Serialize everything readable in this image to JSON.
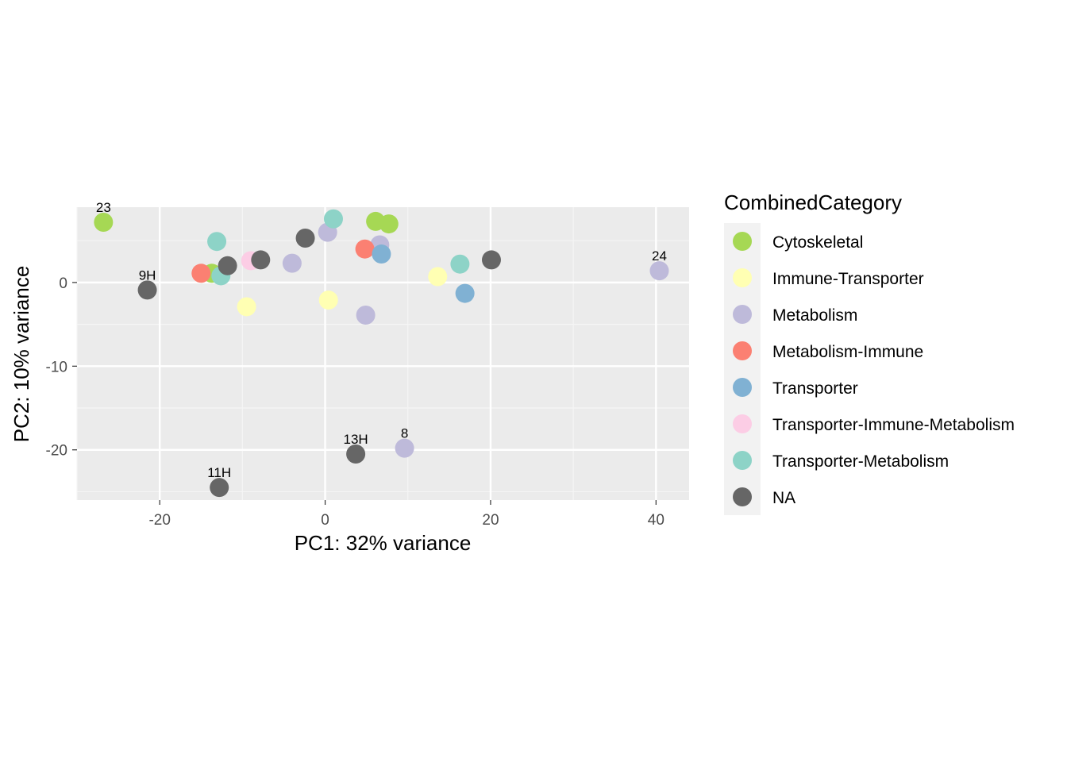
{
  "chart_data": {
    "type": "scatter",
    "xlabel": "PC1: 32% variance",
    "ylabel": "PC2: 10% variance",
    "xlim": [
      -30,
      44
    ],
    "ylim": [
      -26,
      9
    ],
    "x_ticks": [
      -20,
      0,
      20,
      40
    ],
    "y_ticks": [
      0,
      -10,
      -20
    ],
    "x_tick_labels": [
      "-20",
      "0",
      "20",
      "40"
    ],
    "y_tick_labels": [
      "0",
      "-10",
      "-20"
    ],
    "grid": true,
    "legend": {
      "title": "CombinedCategory",
      "placement": "right",
      "entries": [
        {
          "label": "Cytoskeletal",
          "color": "#A6D854"
        },
        {
          "label": "Immune-Transporter",
          "color": "#FFFFB3"
        },
        {
          "label": "Metabolism",
          "color": "#BEBADA"
        },
        {
          "label": "Metabolism-Immune",
          "color": "#FB8072"
        },
        {
          "label": "Transporter",
          "color": "#80B1D3"
        },
        {
          "label": "Transporter-Immune-Metabolism",
          "color": "#FCCDE5"
        },
        {
          "label": "Transporter-Metabolism",
          "color": "#8DD3C7"
        },
        {
          "label": "NA",
          "color": "#666666"
        }
      ]
    },
    "points": [
      {
        "x": -26.8,
        "y": 7.2,
        "category": "Cytoskeletal",
        "label": "23"
      },
      {
        "x": 6.1,
        "y": 7.3,
        "category": "Cytoskeletal",
        "label": ""
      },
      {
        "x": 7.7,
        "y": 7.0,
        "category": "Cytoskeletal",
        "label": ""
      },
      {
        "x": -13.7,
        "y": 1.1,
        "category": "Cytoskeletal",
        "label": ""
      },
      {
        "x": -9.5,
        "y": -2.9,
        "category": "Immune-Transporter",
        "label": ""
      },
      {
        "x": 0.4,
        "y": -2.1,
        "category": "Immune-Transporter",
        "label": ""
      },
      {
        "x": 13.6,
        "y": 0.7,
        "category": "Immune-Transporter",
        "label": ""
      },
      {
        "x": 0.3,
        "y": 6.0,
        "category": "Metabolism",
        "label": ""
      },
      {
        "x": -4.0,
        "y": 2.3,
        "category": "Metabolism",
        "label": ""
      },
      {
        "x": 6.6,
        "y": 4.5,
        "category": "Metabolism",
        "label": ""
      },
      {
        "x": 4.9,
        "y": -3.9,
        "category": "Metabolism",
        "label": ""
      },
      {
        "x": 40.4,
        "y": 1.4,
        "category": "Metabolism",
        "label": "24"
      },
      {
        "x": 9.6,
        "y": -19.8,
        "category": "Metabolism",
        "label": "8"
      },
      {
        "x": -15.0,
        "y": 1.1,
        "category": "Metabolism-Immune",
        "label": ""
      },
      {
        "x": 4.8,
        "y": 4.0,
        "category": "Metabolism-Immune",
        "label": ""
      },
      {
        "x": 6.8,
        "y": 3.4,
        "category": "Transporter",
        "label": ""
      },
      {
        "x": 16.9,
        "y": -1.3,
        "category": "Transporter",
        "label": ""
      },
      {
        "x": -9.0,
        "y": 2.6,
        "category": "Transporter-Immune-Metabolism",
        "label": ""
      },
      {
        "x": -13.1,
        "y": 4.9,
        "category": "Transporter-Metabolism",
        "label": ""
      },
      {
        "x": -12.6,
        "y": 0.8,
        "category": "Transporter-Metabolism",
        "label": ""
      },
      {
        "x": 1.0,
        "y": 7.6,
        "category": "Transporter-Metabolism",
        "label": ""
      },
      {
        "x": 16.3,
        "y": 2.2,
        "category": "Transporter-Metabolism",
        "label": ""
      },
      {
        "x": -21.5,
        "y": -0.9,
        "category": "NA",
        "label": "9H"
      },
      {
        "x": -11.8,
        "y": 2.0,
        "category": "NA",
        "label": ""
      },
      {
        "x": -7.8,
        "y": 2.7,
        "category": "NA",
        "label": ""
      },
      {
        "x": -2.4,
        "y": 5.3,
        "category": "NA",
        "label": ""
      },
      {
        "x": 20.1,
        "y": 2.7,
        "category": "NA",
        "label": ""
      },
      {
        "x": 3.7,
        "y": -20.5,
        "category": "NA",
        "label": "13H"
      },
      {
        "x": -12.8,
        "y": -24.5,
        "category": "NA",
        "label": "11H"
      }
    ]
  }
}
